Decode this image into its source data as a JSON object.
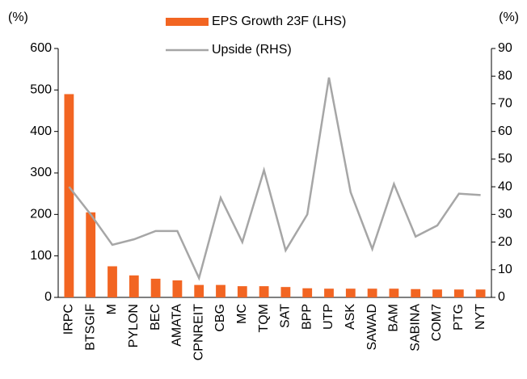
{
  "chart_data": {
    "type": "bar_line",
    "y_label": "(%)",
    "y2_label": "(%)",
    "categories": [
      "IRPC",
      "BTSGIF",
      "M",
      "PYLON",
      "BEC",
      "AMATA",
      "CPNREIT",
      "CBG",
      "MC",
      "TQM",
      "SAT",
      "BPP",
      "UTP",
      "ASK",
      "SAWAD",
      "BAM",
      "SABINA",
      "COM7",
      "PTG",
      "NYT"
    ],
    "series": [
      {
        "name": "EPS Growth 23F (LHS)",
        "type": "bar",
        "axis": "y",
        "color": "#f26522",
        "values": [
          490,
          205,
          75,
          53,
          45,
          41,
          30,
          30,
          27,
          27,
          25,
          22,
          21,
          21,
          21,
          21,
          20,
          19,
          19,
          19
        ]
      },
      {
        "name": "Upside (RHS)",
        "type": "line",
        "axis": "y2",
        "color": "#a6a6a6",
        "values": [
          40,
          30,
          19,
          21,
          24,
          24,
          7,
          36,
          20,
          46,
          17,
          30,
          79.5,
          38,
          17.5,
          41,
          22,
          26,
          37.5,
          37
        ]
      }
    ],
    "ylim": [
      0,
      600
    ],
    "yticks": [
      0,
      100,
      200,
      300,
      400,
      500,
      600
    ],
    "y2lim": [
      0,
      90
    ],
    "y2ticks": [
      0,
      10,
      20,
      30,
      40,
      50,
      60,
      70,
      80,
      90
    ],
    "legend": "top"
  }
}
